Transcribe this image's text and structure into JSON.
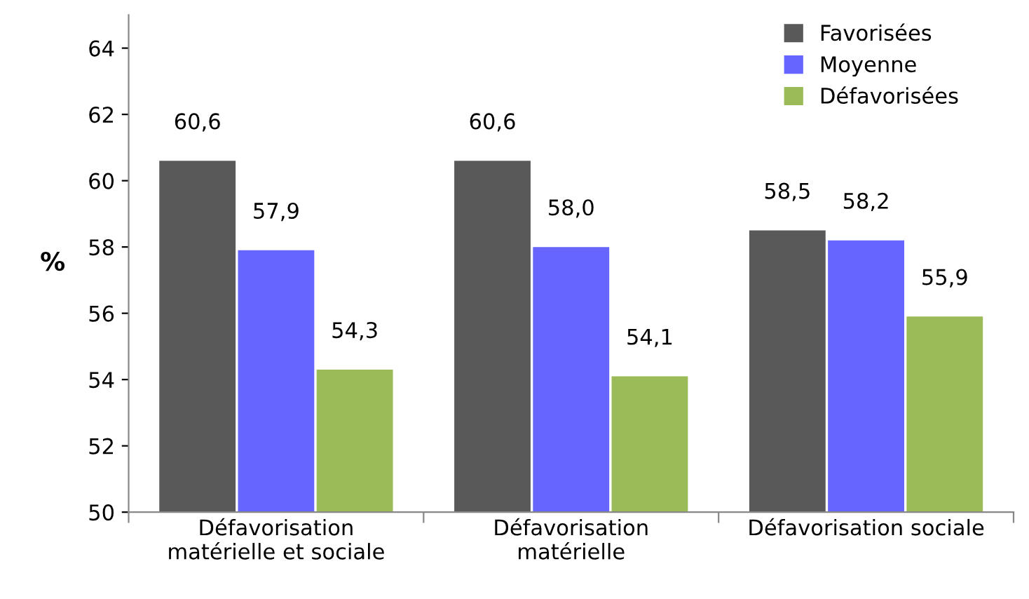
{
  "chart_data": {
    "type": "bar",
    "ylabel": "%",
    "categories": [
      "Défavorisation\nmatérielle et sociale",
      "Défavorisation\nmatérielle",
      "Défavorisation sociale"
    ],
    "series": [
      {
        "name": "Favorisées",
        "color": "#595959",
        "values": [
          60.6,
          60.6,
          58.5
        ],
        "value_labels": [
          "60,6",
          "60,6",
          "58,5"
        ]
      },
      {
        "name": "Moyenne",
        "color": "#6666ff",
        "values": [
          57.9,
          58.0,
          58.2
        ],
        "value_labels": [
          "57,9",
          "58,0",
          "58,2"
        ]
      },
      {
        "name": "Défavorisées",
        "color": "#9bbb59",
        "values": [
          54.3,
          54.1,
          55.9
        ],
        "value_labels": [
          "54,3",
          "54,1",
          "55,9"
        ]
      }
    ],
    "ylim": [
      50,
      65
    ],
    "yticks": [
      50,
      52,
      54,
      56,
      58,
      60,
      62,
      64
    ],
    "grid": false,
    "legend": "top right"
  }
}
